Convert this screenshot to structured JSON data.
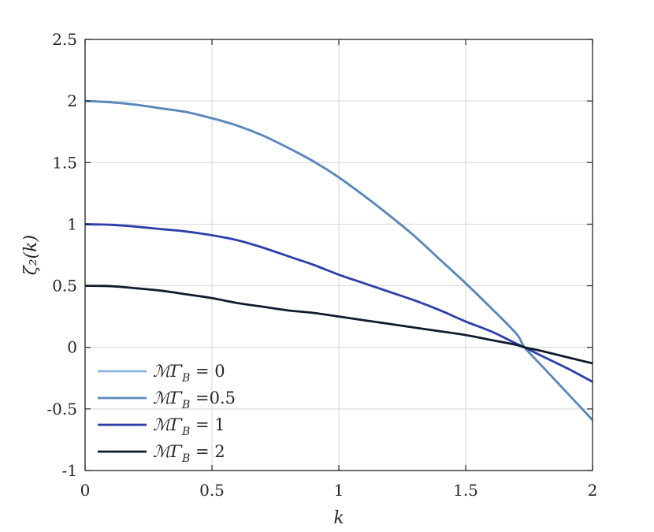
{
  "chart_data": {
    "type": "line",
    "xlabel": "k",
    "ylabel": "ζ₂(k)",
    "xlim": [
      0,
      2
    ],
    "ylim": [
      -1,
      2.5
    ],
    "xticks": [
      "0",
      "0.5",
      "1",
      "1.5",
      "2"
    ],
    "yticks": [
      "-1",
      "-0.5",
      "0",
      "0.5",
      "1",
      "1.5",
      "2",
      "2.5"
    ],
    "grid": true,
    "legend_position": "bottom-left",
    "x": [
      0,
      0.1,
      0.2,
      0.3,
      0.4,
      0.5,
      0.6,
      0.7,
      0.8,
      0.9,
      1.0,
      1.1,
      1.2,
      1.3,
      1.4,
      1.5,
      1.6,
      1.7,
      1.732,
      1.8,
      1.9,
      2.0
    ],
    "series": [
      {
        "name": "ℳΓ_B = 0",
        "legend_lhs": "ℳΓ",
        "legend_sub": "B",
        "legend_rhs": " = 0",
        "color": "#8cb3e0",
        "values": [
          2.0,
          1.99,
          1.97,
          1.94,
          1.91,
          1.86,
          1.8,
          1.72,
          1.62,
          1.51,
          1.38,
          1.23,
          1.07,
          0.9,
          0.71,
          0.52,
          0.32,
          0.11,
          0.0,
          -0.15,
          -0.37,
          -0.59
        ]
      },
      {
        "name": "ℳΓ_B =0.5",
        "legend_lhs": "ℳΓ",
        "legend_sub": "B",
        "legend_rhs": " =0.5",
        "color": "#5a88ba",
        "values": [
          2.0,
          1.99,
          1.97,
          1.94,
          1.91,
          1.86,
          1.8,
          1.72,
          1.62,
          1.51,
          1.38,
          1.23,
          1.07,
          0.9,
          0.71,
          0.52,
          0.32,
          0.11,
          0.0,
          -0.15,
          -0.37,
          -0.59
        ]
      },
      {
        "name": "ℳΓ_B = 1",
        "legend_lhs": "ℳΓ",
        "legend_sub": "B",
        "legend_rhs": " = 1",
        "color": "#2c3ea8",
        "values": [
          1.0,
          0.995,
          0.98,
          0.96,
          0.94,
          0.91,
          0.87,
          0.81,
          0.74,
          0.67,
          0.59,
          0.52,
          0.45,
          0.38,
          0.3,
          0.21,
          0.13,
          0.03,
          0.0,
          -0.07,
          -0.17,
          -0.28
        ]
      },
      {
        "name": "ℳΓ_B = 2",
        "legend_lhs": "ℳΓ",
        "legend_sub": "B",
        "legend_rhs": " = 2",
        "color": "#101b2d",
        "values": [
          0.5,
          0.497,
          0.48,
          0.46,
          0.43,
          0.4,
          0.36,
          0.33,
          0.3,
          0.28,
          0.25,
          0.22,
          0.19,
          0.16,
          0.13,
          0.1,
          0.06,
          0.02,
          0.0,
          -0.03,
          -0.08,
          -0.13
        ]
      }
    ]
  }
}
